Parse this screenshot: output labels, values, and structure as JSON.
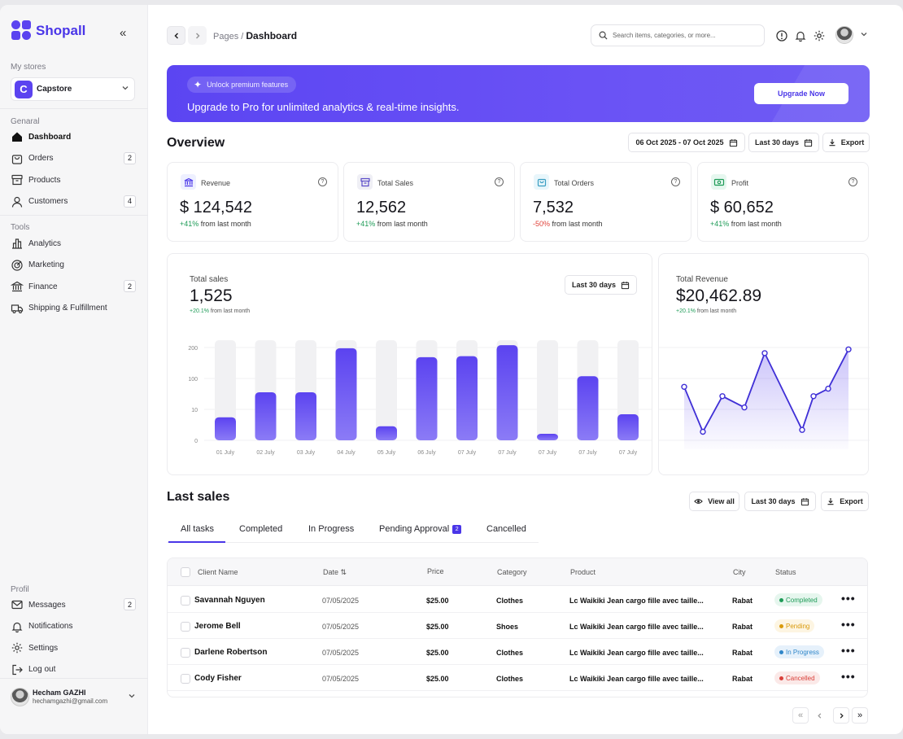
{
  "sidebar": {
    "brand": "Shopall",
    "my_stores_label": "My stores",
    "store_initial": "C",
    "store_name": "Capstore",
    "general_label": "Genaral",
    "general_items": [
      {
        "label": "Dashboard",
        "count": "",
        "icon": "home-icon"
      },
      {
        "label": "Orders",
        "count": "2",
        "icon": "bag-icon"
      },
      {
        "label": "Products",
        "count": "",
        "icon": "box-icon"
      },
      {
        "label": "Customers",
        "count": "4",
        "icon": "user-icon"
      }
    ],
    "tools_label": "Tools",
    "tools_items": [
      {
        "label": "Analytics",
        "count": "",
        "icon": "analytics-icon"
      },
      {
        "label": "Marketing",
        "count": "",
        "icon": "target-icon"
      },
      {
        "label": "Finance",
        "count": "2",
        "icon": "bank-icon"
      },
      {
        "label": "Shipping & Fulfillment",
        "count": "",
        "icon": "truck-icon"
      }
    ],
    "profil_label": "Profil",
    "profil_items": [
      {
        "label": "Messages",
        "count": "2",
        "icon": "mail-icon"
      },
      {
        "label": "Notifications",
        "count": "",
        "icon": "bell-icon"
      },
      {
        "label": "Settings",
        "count": "",
        "icon": "gear-icon"
      },
      {
        "label": "Log out",
        "count": "",
        "icon": "logout-icon"
      }
    ],
    "user": {
      "name": "Hecham GAZHI",
      "email": "hechamgazhi@gmail.com"
    }
  },
  "header": {
    "crumb_parent": "Pages /",
    "crumb_current": "Dashboard",
    "search_placeholder": "Search items, categories, or more..."
  },
  "banner": {
    "pill": "Unlock premium features",
    "text": "Upgrade to Pro for unlimited analytics & real-time insights.",
    "button": "Upgrade Now"
  },
  "overview": {
    "title": "Overview",
    "date_range": "06 Oct 2025 - 07 Oct 2025",
    "period": "Last 30 days",
    "export": "Export",
    "cards": [
      {
        "label": "Revenue",
        "value": "$ 124,542",
        "delta": "+41%",
        "delta_dir": "up",
        "suffix": "from last month",
        "icon": "revenue-icon",
        "tint": "#eef0ff",
        "color": "#4a36e8"
      },
      {
        "label": "Total Sales",
        "value": "12,562",
        "delta": "+41%",
        "delta_dir": "up",
        "suffix": "from last month",
        "icon": "archive-icon",
        "tint": "#efeff5",
        "color": "#5a4cc8"
      },
      {
        "label": "Total Orders",
        "value": "7,532",
        "delta": "-50%",
        "delta_dir": "down",
        "suffix": "from last month",
        "icon": "cart-icon",
        "tint": "#e8f6fb",
        "color": "#3a9ec2"
      },
      {
        "label": "Profit",
        "value": "$ 60,652",
        "delta": "+41%",
        "delta_dir": "up",
        "suffix": "from last month",
        "icon": "cash-icon",
        "tint": "#e6f7ef",
        "color": "#1e9b57"
      }
    ]
  },
  "sales_chart": {
    "title": "Total sales",
    "value": "1,525",
    "delta": "+20.1%",
    "suffix": "from last month",
    "period": "Last 30 days"
  },
  "revenue_chart": {
    "title": "Total Revenue",
    "value": "$20,462.89",
    "delta": "+20.1%",
    "suffix": "from last month"
  },
  "chart_data": [
    {
      "type": "bar",
      "title": "Total sales",
      "y_ticks": [
        "0",
        "10",
        "100",
        "200"
      ],
      "categories": [
        "01 July",
        "02 July",
        "03 July",
        "04 July",
        "05 July",
        "06 July",
        "07 July",
        "07 July",
        "07 July",
        "07 July",
        "07 July"
      ],
      "values": [
        23,
        48,
        48,
        92,
        14,
        83,
        84,
        95,
        6,
        64,
        26
      ],
      "max_values": [
        100,
        100,
        100,
        100,
        100,
        100,
        100,
        100,
        100,
        100,
        100
      ],
      "color": "#5b43f0"
    },
    {
      "type": "area",
      "title": "Total Revenue",
      "values": [
        58,
        10,
        48,
        36,
        94,
        12,
        48,
        56,
        98
      ],
      "ylim": [
        0,
        100
      ],
      "color": "#3f2fd6"
    }
  ],
  "last_sales": {
    "title": "Last sales",
    "view_all": "View all",
    "period": "Last 30 days",
    "export": "Export",
    "tabs": [
      {
        "label": "All tasks",
        "count": ""
      },
      {
        "label": "Completed",
        "count": ""
      },
      {
        "label": "In Progress",
        "count": ""
      },
      {
        "label": "Pending Approval",
        "count": "2"
      },
      {
        "label": "Cancelled",
        "count": ""
      }
    ],
    "columns": [
      "Client Name",
      "Date ⇅",
      "Price",
      "Category",
      "Product",
      "City",
      "Status"
    ],
    "rows": [
      {
        "name": "Savannah Nguyen",
        "date": "07/05/2025",
        "price": "$25.00",
        "category": "Clothes",
        "product": "Lc Waikiki Jean cargo fille avec taille...",
        "city": "Rabat",
        "status": "Completed",
        "status_color": "#1e9b57",
        "status_bg": "#e6f6ee"
      },
      {
        "name": "Jerome Bell",
        "date": "07/05/2025",
        "price": "$25.00",
        "category": "Shoes",
        "product": "Lc Waikiki Jean cargo fille avec taille...",
        "city": "Rabat",
        "status": "Pending",
        "status_color": "#d99a0b",
        "status_bg": "#fdf5e2"
      },
      {
        "name": "Darlene Robertson",
        "date": "07/05/2025",
        "price": "$25.00",
        "category": "Clothes",
        "product": "Lc Waikiki Jean cargo fille avec taille...",
        "city": "Rabat",
        "status": "In Progress",
        "status_color": "#2f86c9",
        "status_bg": "#e6f1fb"
      },
      {
        "name": "Cody Fisher",
        "date": "07/05/2025",
        "price": "$25.00",
        "category": "Clothes",
        "product": "Lc Waikiki Jean cargo fille avec taille...",
        "city": "Rabat",
        "status": "Cancelled",
        "status_color": "#d9403a",
        "status_bg": "#fbe9e8"
      }
    ]
  }
}
